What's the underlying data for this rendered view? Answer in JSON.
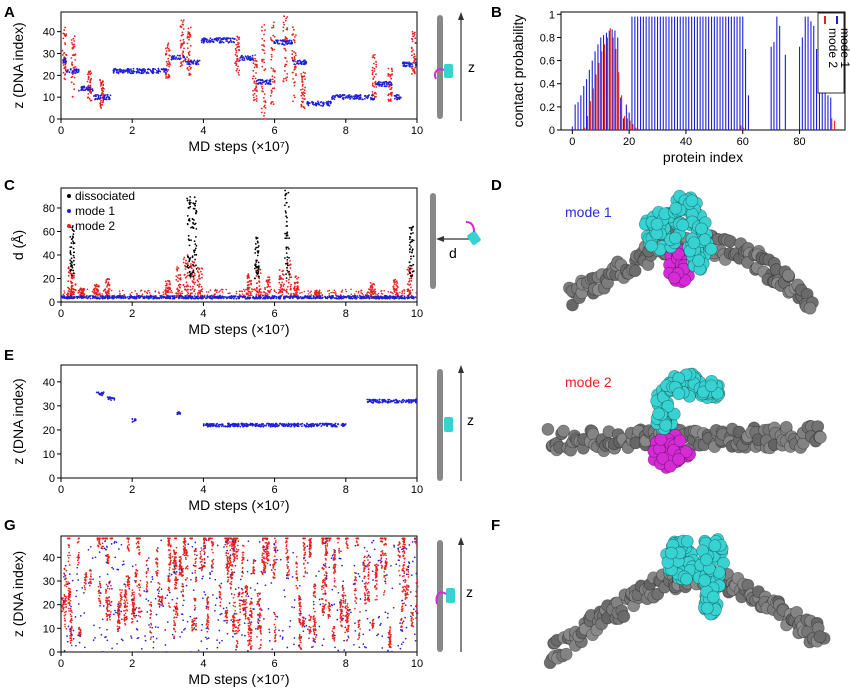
{
  "panels": {
    "A": {
      "letter": "A"
    },
    "B": {
      "letter": "B"
    },
    "C": {
      "letter": "C"
    },
    "D": {
      "letter": "D",
      "label": "mode 1",
      "label_color": "#2a2adf"
    },
    "E": {
      "letter": "E",
      "label": "mode 2",
      "label_color": "#e8211d"
    },
    "F": {
      "letter": "F"
    },
    "G": {
      "letter": "G"
    }
  },
  "schematics": {
    "A": {
      "arrow_label": "z"
    },
    "C": {
      "arrow_label": "d"
    },
    "E": {
      "arrow_label": "z"
    },
    "G": {
      "arrow_label": "z"
    }
  },
  "colors": {
    "mode1": "#1f1fd8",
    "mode2": "#e8211d",
    "dissociated": "#000000",
    "dna": "#777777",
    "protein_cyan": "#37d3d3",
    "protein_magenta": "#d52ad5"
  },
  "chart_data": [
    {
      "id": "A",
      "type": "scatter",
      "xlabel": "MD steps (×10⁷)",
      "ylabel": "z (DNA index)",
      "xlim": [
        0,
        10
      ],
      "ylim": [
        0,
        49
      ],
      "xticks": [
        0,
        2,
        4,
        6,
        8,
        10
      ],
      "yticks": [
        0,
        10,
        20,
        30,
        40
      ],
      "series": [
        {
          "key": "mode1",
          "segments": [
            [
              0,
              0.15,
              27
            ],
            [
              0.15,
              0.5,
              22
            ],
            [
              0.5,
              0.9,
              14
            ],
            [
              0.9,
              1.4,
              10
            ],
            [
              1.45,
              3.0,
              22
            ],
            [
              3.1,
              3.5,
              28
            ],
            [
              3.5,
              3.9,
              26
            ],
            [
              3.95,
              4.9,
              36
            ],
            [
              5.0,
              5.4,
              28
            ],
            [
              5.5,
              5.9,
              17
            ],
            [
              5.95,
              6.5,
              35
            ],
            [
              6.5,
              6.9,
              26
            ],
            [
              6.9,
              7.6,
              7
            ],
            [
              7.6,
              8.8,
              10
            ],
            [
              8.85,
              9.3,
              16
            ],
            [
              9.3,
              9.55,
              10
            ],
            [
              9.6,
              10.0,
              25
            ]
          ]
        },
        {
          "key": "mode2",
          "spikes": [
            [
              0.1,
              18,
              42
            ],
            [
              0.35,
              10,
              38
            ],
            [
              0.8,
              8,
              22
            ],
            [
              1.15,
              5,
              18
            ],
            [
              3.0,
              18,
              35
            ],
            [
              3.4,
              24,
              46
            ],
            [
              3.6,
              20,
              42
            ],
            [
              4.95,
              20,
              38
            ],
            [
              5.45,
              8,
              30
            ],
            [
              5.7,
              0,
              46
            ],
            [
              5.95,
              6,
              46
            ],
            [
              6.3,
              16,
              48
            ],
            [
              6.55,
              8,
              44
            ],
            [
              6.8,
              4,
              22
            ],
            [
              8.8,
              10,
              30
            ],
            [
              9.25,
              8,
              24
            ],
            [
              9.9,
              20,
              40
            ]
          ]
        }
      ]
    },
    {
      "id": "B",
      "type": "bar",
      "xlabel": "protein index",
      "ylabel": "contact probability",
      "xlim": [
        -4,
        96
      ],
      "ylim": [
        0,
        1.02
      ],
      "xticks": [
        0,
        20,
        40,
        60,
        80
      ],
      "yticks": [
        0,
        0.2,
        0.4,
        0.6,
        0.8,
        1.0
      ],
      "legend": [
        "mode 1",
        "mode 2"
      ],
      "legend_position": "top-right",
      "mode1_values": [
        0.03,
        0.22,
        0.24,
        0.3,
        0.38,
        0.44,
        0.52,
        0.6,
        0.68,
        0.74,
        0.8,
        0.82,
        0.84,
        0.86,
        0.87,
        0.86,
        0.8,
        0.28,
        0.1,
        0.22,
        0.15,
        0.98,
        0.98,
        0.98,
        0.98,
        0.98,
        0.98,
        0.98,
        0.98,
        0.98,
        0.98,
        0.98,
        0.98,
        0.98,
        0.98,
        0.98,
        0.98,
        0.98,
        0.98,
        0.98,
        0.98,
        0.98,
        0.98,
        0.98,
        0.98,
        0.98,
        0.98,
        0.98,
        0.98,
        0.98,
        0.98,
        0.98,
        0.98,
        0.98,
        0.98,
        0.98,
        0.98,
        0.98,
        0.98,
        0.98,
        0.98,
        0.7,
        0.3,
        0.0,
        0.0,
        0.0,
        0.0,
        0.0,
        0.0,
        0.0,
        0.72,
        0.76,
        0.98,
        0.9,
        0.0,
        0.65,
        0.0,
        0.0,
        0.0,
        0.0,
        0.72,
        0.8,
        0.98,
        0.98,
        0.94,
        0.9,
        0.7,
        0.64,
        0.5,
        0.4,
        0.3,
        0.28,
        0.0
      ],
      "mode2_values": [
        0.0,
        0.0,
        0.0,
        0.0,
        0.02,
        0.12,
        0.25,
        0.36,
        0.48,
        0.58,
        0.68,
        0.74,
        0.8,
        0.88,
        0.8,
        0.7,
        0.5,
        0.3,
        0.12,
        0.1,
        0.08,
        0.05,
        0.02,
        0.0,
        0.0,
        0.0,
        0.0,
        0.0,
        0.0,
        0.0,
        0.0,
        0.0,
        0.0,
        0.0,
        0.0,
        0.0,
        0.0,
        0.0,
        0.0,
        0.0,
        0.0,
        0.0,
        0.0,
        0.0,
        0.0,
        0.0,
        0.0,
        0.0,
        0.0,
        0.0,
        0.0,
        0.0,
        0.0,
        0.0,
        0.0,
        0.0,
        0.0,
        0.0,
        0.0,
        0.04,
        0.02,
        0.0,
        0.0,
        0.0,
        0.0,
        0.0,
        0.0,
        0.0,
        0.0,
        0.0,
        0.0,
        0.0,
        0.0,
        0.0,
        0.0,
        0.0,
        0.0,
        0.0,
        0.0,
        0.0,
        0.0,
        0.0,
        0.0,
        0.0,
        0.0,
        0.0,
        0.0,
        0.0,
        0.0,
        0.0,
        0.0,
        0.1,
        0.08
      ]
    },
    {
      "id": "C",
      "type": "scatter",
      "xlabel": "MD steps (×10⁷)",
      "ylabel": "d (Å)",
      "xlim": [
        0,
        10
      ],
      "ylim": [
        0,
        97
      ],
      "xticks": [
        0,
        2,
        4,
        6,
        8,
        10
      ],
      "yticks": [
        0,
        20,
        40,
        60,
        80
      ],
      "legend": [
        "dissociated",
        "mode 1",
        "mode 2"
      ],
      "legend_position": "top-left",
      "series": [
        {
          "key": "mode1",
          "baseline": 4
        },
        {
          "key": "mode2",
          "spikes": [
            [
              0.25,
              30
            ],
            [
              0.35,
              25
            ],
            [
              0.6,
              12
            ],
            [
              1.0,
              15
            ],
            [
              1.3,
              20
            ],
            [
              3.0,
              18
            ],
            [
              3.3,
              30
            ],
            [
              3.5,
              40
            ],
            [
              3.7,
              35
            ],
            [
              3.9,
              30
            ],
            [
              5.3,
              25
            ],
            [
              5.55,
              30
            ],
            [
              5.8,
              22
            ],
            [
              6.2,
              28
            ],
            [
              6.4,
              35
            ],
            [
              6.6,
              22
            ],
            [
              7.2,
              10
            ],
            [
              8.75,
              18
            ],
            [
              9.4,
              20
            ],
            [
              9.8,
              30
            ]
          ]
        },
        {
          "key": "dissociated",
          "spikes": [
            [
              0.32,
              65
            ],
            [
              3.6,
              92
            ],
            [
              3.75,
              90
            ],
            [
              5.5,
              55
            ],
            [
              6.35,
              95
            ],
            [
              9.85,
              65
            ]
          ]
        }
      ]
    },
    {
      "id": "E",
      "type": "scatter",
      "xlabel": "MD steps (×10⁷)",
      "ylabel": "z (DNA index)",
      "xlim": [
        0,
        10
      ],
      "ylim": [
        0,
        47
      ],
      "xticks": [
        0,
        2,
        4,
        6,
        8,
        10
      ],
      "yticks": [
        0,
        10,
        20,
        30,
        40
      ],
      "series": [
        {
          "key": "mode1",
          "segments": [
            [
              1.0,
              1.2,
              35
            ],
            [
              1.3,
              1.5,
              33
            ],
            [
              2.0,
              2.1,
              24
            ],
            [
              3.25,
              3.35,
              27
            ],
            [
              4.0,
              8.0,
              22
            ],
            [
              8.6,
              10.0,
              32
            ]
          ]
        }
      ]
    },
    {
      "id": "G",
      "type": "scatter",
      "xlabel": "MD steps (×10⁷)",
      "ylabel": "z (DNA index)",
      "xlim": [
        0,
        10
      ],
      "ylim": [
        0,
        49
      ],
      "xticks": [
        0,
        2,
        4,
        6,
        8,
        10
      ],
      "yticks": [
        0,
        10,
        20,
        30,
        40
      ],
      "series": [
        {
          "key": "mode2",
          "pattern": "dense-random"
        },
        {
          "key": "mode1",
          "pattern": "sparse-random"
        }
      ]
    }
  ]
}
